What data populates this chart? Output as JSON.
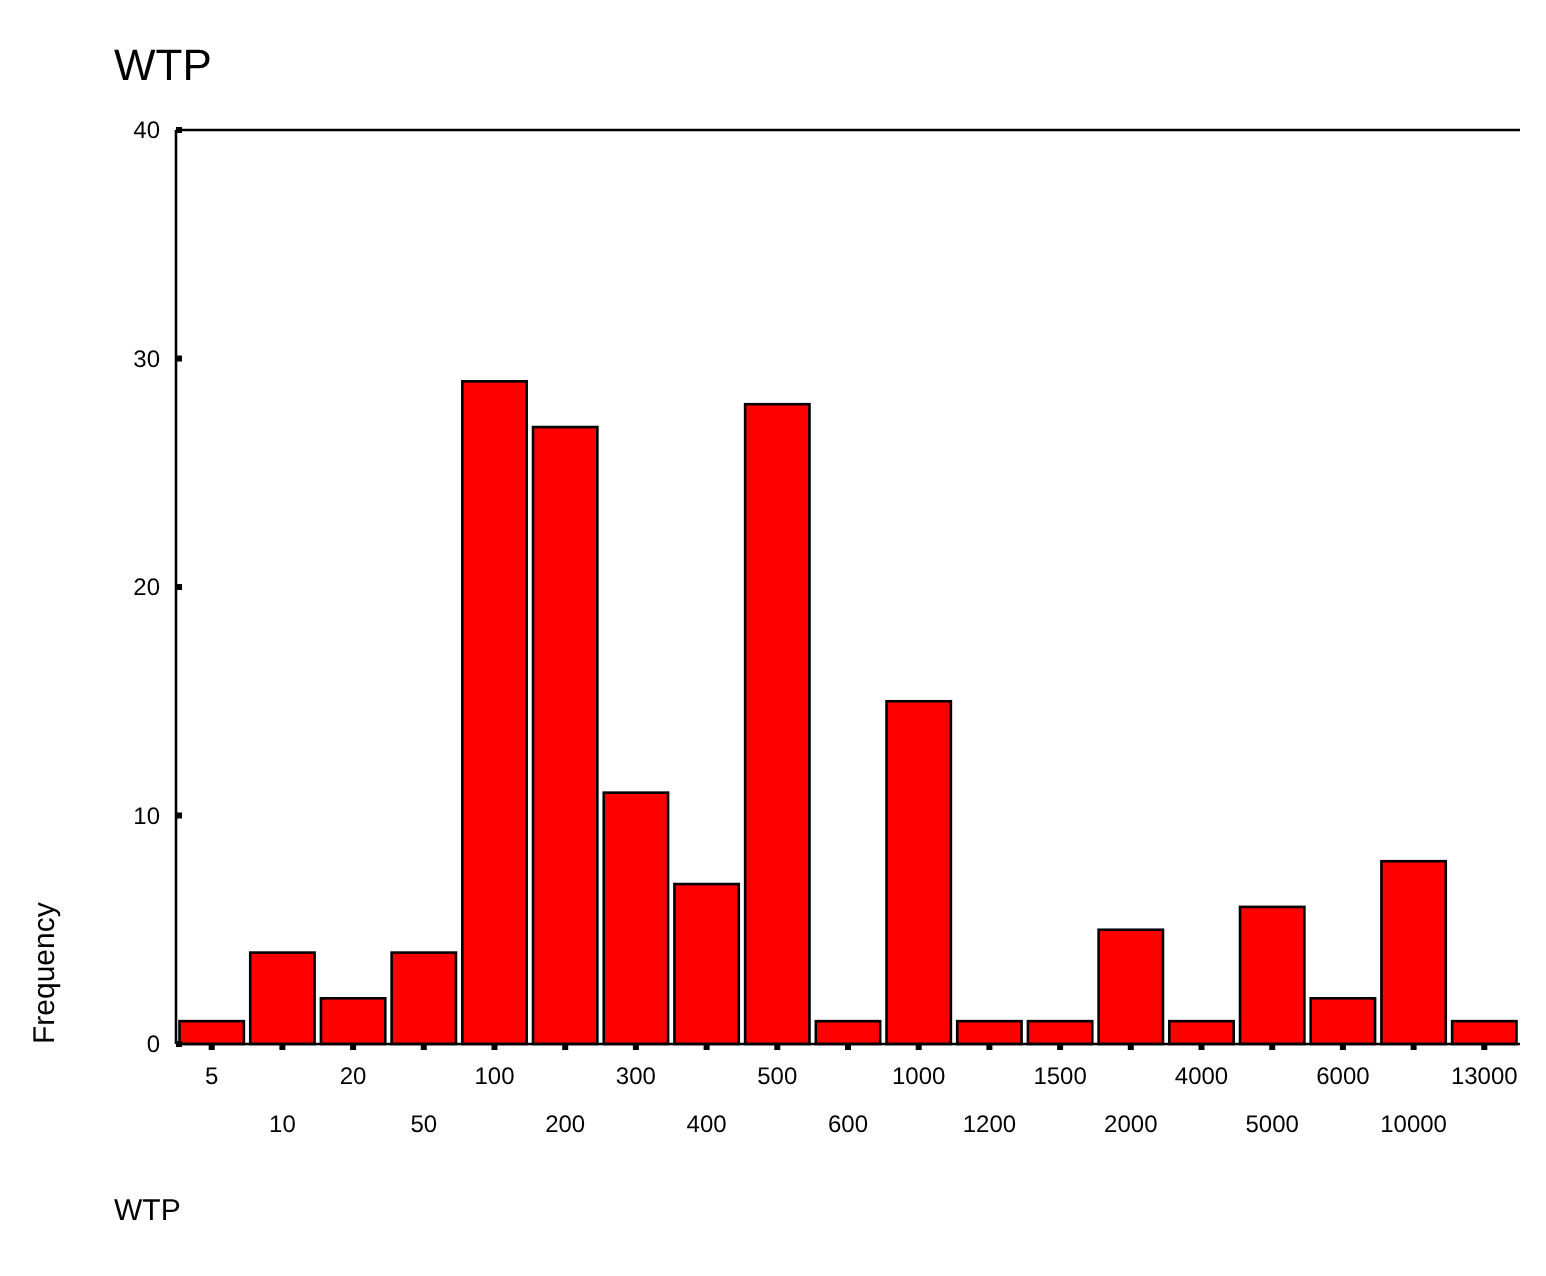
{
  "chart_data": {
    "type": "bar",
    "title": "WTP",
    "xlabel": "WTP",
    "ylabel": "Frequency",
    "categories": [
      "5",
      "10",
      "20",
      "50",
      "100",
      "200",
      "300",
      "400",
      "500",
      "600",
      "1000",
      "1200",
      "1500",
      "2000",
      "4000",
      "5000",
      "6000",
      "10000",
      "13000"
    ],
    "values": [
      1,
      4,
      2,
      4,
      29,
      27,
      11,
      7,
      28,
      1,
      15,
      1,
      1,
      5,
      1,
      6,
      2,
      8,
      1
    ],
    "color": "#ff0000",
    "ylim": [
      0,
      40
    ],
    "yticks": [
      0,
      10,
      20,
      30,
      40
    ],
    "grid": false
  }
}
